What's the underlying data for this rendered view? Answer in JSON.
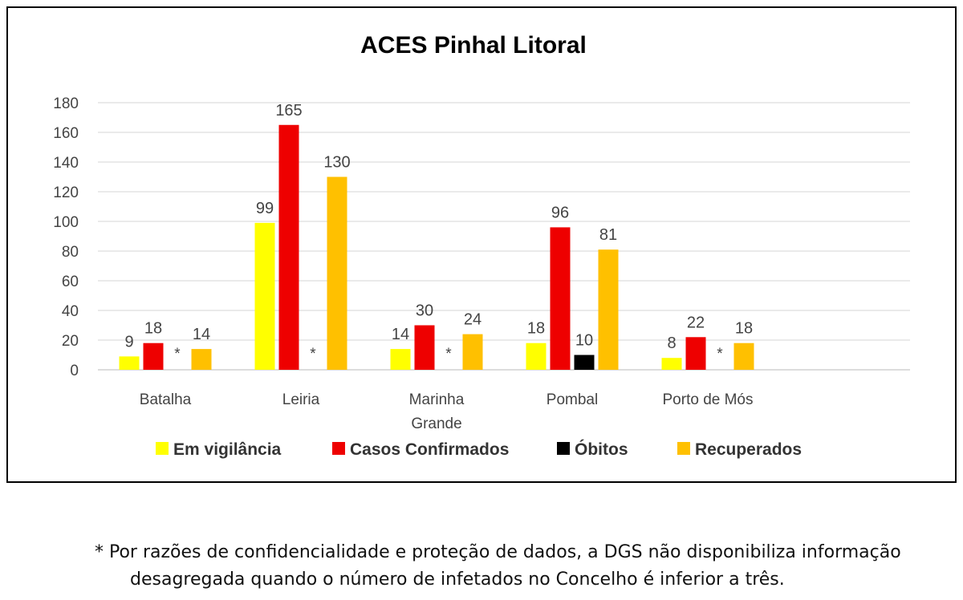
{
  "chart_data": {
    "type": "bar",
    "title": "ACES Pinhal Litoral",
    "xlabel": "",
    "ylabel": "",
    "ylim": [
      0,
      180
    ],
    "yticks": [
      0,
      20,
      40,
      60,
      80,
      100,
      120,
      140,
      160,
      180
    ],
    "grid": true,
    "legend_position": "bottom",
    "categories": [
      "Batalha",
      "Leiria",
      "Marinha Grande",
      "Pombal",
      "Porto de Mós"
    ],
    "series": [
      {
        "name": "Em vigilância",
        "color": "#ffff00",
        "values": [
          9,
          99,
          14,
          18,
          8
        ]
      },
      {
        "name": "Casos Confirmados",
        "color": "#ee0000",
        "values": [
          18,
          165,
          30,
          96,
          22
        ]
      },
      {
        "name": "Óbitos",
        "color": "#000000",
        "values": [
          null,
          null,
          null,
          10,
          null
        ],
        "missing_label": "*"
      },
      {
        "name": "Recuperados",
        "color": "#ffc000",
        "values": [
          14,
          130,
          24,
          81,
          18
        ]
      }
    ]
  },
  "footnote": {
    "line1": "* Por razões de confidencialidade e proteção de dados, a DGS não disponibiliza informação",
    "line2": "desagregada quando o número de infetados no Concelho é inferior a três."
  }
}
